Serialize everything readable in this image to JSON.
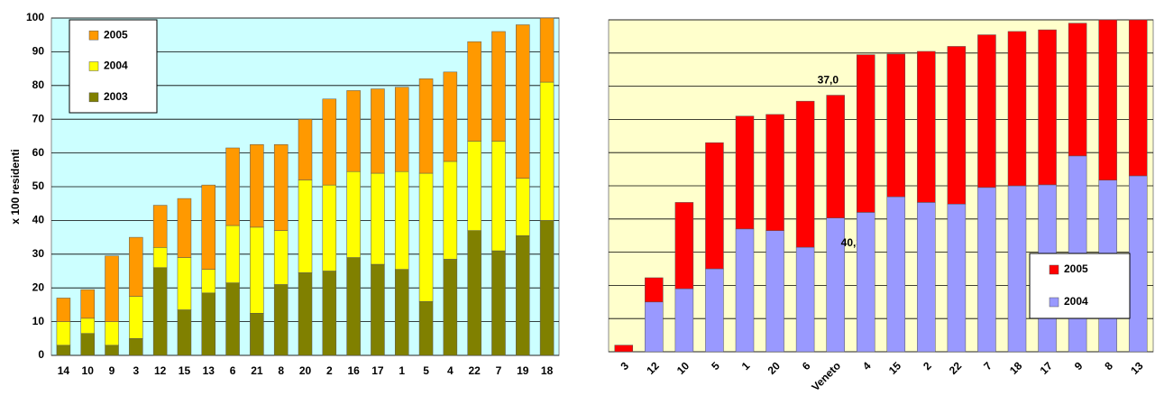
{
  "chart_data": [
    {
      "type": "stacked_bar",
      "ylabel": "x 100 residenti",
      "categories": [
        "14",
        "10",
        "9",
        "3",
        "12",
        "15",
        "13",
        "6",
        "21",
        "8",
        "20",
        "2",
        "16",
        "17",
        "1",
        "5",
        "4",
        "22",
        "7",
        "19",
        "18"
      ],
      "series": [
        {
          "name": "2003",
          "color": "#808000",
          "values": [
            3,
            6.5,
            3,
            5,
            26,
            13.5,
            18.5,
            21.5,
            12.5,
            21,
            24.5,
            25,
            29,
            27,
            25.5,
            16,
            28.5,
            37,
            31,
            35.5,
            40
          ]
        },
        {
          "name": "2004",
          "color": "#ffff00",
          "values": [
            7,
            4.5,
            7,
            12.5,
            6,
            15.5,
            7,
            17,
            25.5,
            16,
            27.5,
            25.5,
            25.5,
            27,
            29,
            38,
            29,
            26.5,
            32.5,
            17,
            41
          ]
        },
        {
          "name": "2005",
          "color": "#ff9900",
          "values": [
            7,
            8.5,
            19.5,
            17.5,
            12.5,
            17.5,
            25,
            23,
            24.5,
            25.5,
            18,
            25.5,
            24,
            25,
            25,
            28,
            26.5,
            29.5,
            32.5,
            45.5,
            20
          ]
        }
      ],
      "ylim": [
        0,
        100
      ],
      "yticks": [
        0,
        10,
        20,
        30,
        40,
        50,
        60,
        70,
        80,
        90,
        100
      ],
      "grid": true,
      "background": "#ccffff",
      "legend": "upper left"
    },
    {
      "type": "stacked_bar",
      "categories": [
        "3",
        "12",
        "10",
        "5",
        "1",
        "20",
        "6",
        "Veneto",
        "4",
        "15",
        "2",
        "22",
        "7",
        "18",
        "17",
        "9",
        "8",
        "13"
      ],
      "series": [
        {
          "name": "2004",
          "color": "#9999ff",
          "values": [
            0,
            15,
            19,
            25,
            37,
            36.5,
            31.5,
            40.3,
            42,
            46.7,
            45,
            44.5,
            49.5,
            50,
            50.3,
            59,
            51.7,
            53
          ],
          "value_labels": [
            null,
            null,
            null,
            null,
            null,
            null,
            null,
            "40,3",
            null,
            null,
            null,
            null,
            null,
            null,
            null,
            null,
            null,
            null
          ]
        },
        {
          "name": "2005",
          "color": "#ff0000",
          "values": [
            2,
            7.3,
            26,
            38,
            34,
            35,
            44,
            37.0,
            47.5,
            43,
            45.5,
            47.5,
            46,
            46.5,
            46.7,
            40,
            49,
            48
          ],
          "value_labels": [
            null,
            null,
            null,
            null,
            null,
            null,
            null,
            "37,0",
            null,
            null,
            null,
            null,
            null,
            null,
            null,
            null,
            null,
            null
          ]
        }
      ],
      "ylim": [
        0,
        100
      ],
      "yticks": [
        0,
        10,
        20,
        30,
        40,
        50,
        60,
        70,
        80,
        90,
        100
      ],
      "ytick_labels": false,
      "grid": true,
      "background": "#ffffcc",
      "legend": "lower right",
      "xtick_rotation": -45
    }
  ]
}
